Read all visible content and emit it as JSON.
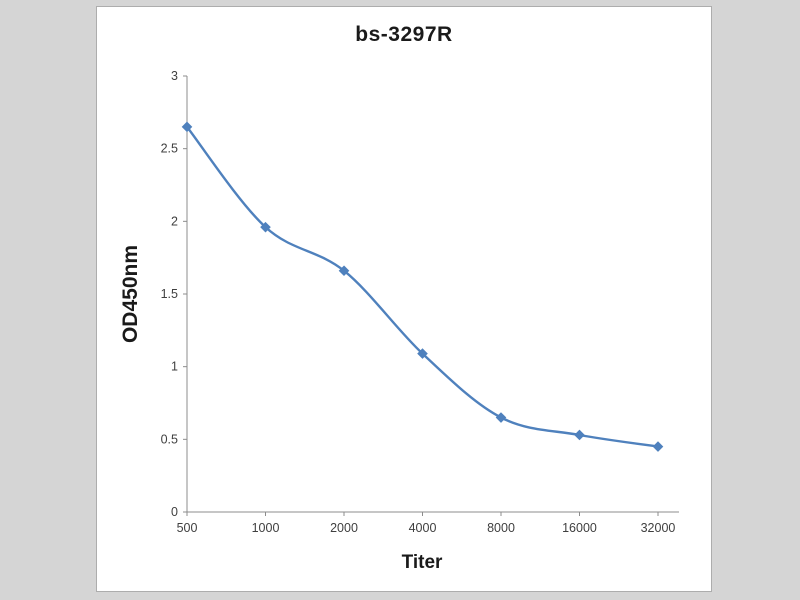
{
  "page": {
    "background_color": "#d5d5d5",
    "panel_background": "#ffffff",
    "panel_border_color": "#adadad"
  },
  "chart_data": {
    "type": "line",
    "title": "bs-3297R",
    "xlabel": "Titer",
    "ylabel": "OD450nm",
    "categories": [
      "500",
      "1000",
      "2000",
      "4000",
      "8000",
      "16000",
      "32000"
    ],
    "series": [
      {
        "name": "bs-3297R",
        "values": [
          2.65,
          1.96,
          1.66,
          1.09,
          0.65,
          0.53,
          0.45
        ]
      }
    ],
    "ylim": [
      0,
      3
    ],
    "yticks": [
      0,
      0.5,
      1,
      1.5,
      2,
      2.5,
      3
    ],
    "line_color": "#4f81bd",
    "marker": "diamond",
    "marker_color": "#4f81bd",
    "axis_color": "#8c8c8c",
    "tick_label_color": "#3f3f3f",
    "grid": false,
    "legend": false,
    "smooth": true
  }
}
